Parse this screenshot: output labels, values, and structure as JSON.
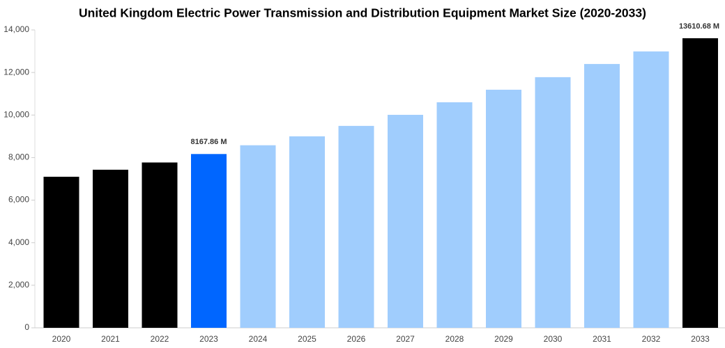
{
  "chart_data": {
    "type": "bar",
    "title": "United Kingdom Electric Power Transmission and Distribution Equipment Market Size (2020-2033)",
    "categories": [
      "2020",
      "2021",
      "2022",
      "2023",
      "2024",
      "2025",
      "2026",
      "2027",
      "2028",
      "2029",
      "2030",
      "2031",
      "2032",
      "2033"
    ],
    "values": [
      7100,
      7430,
      7770,
      8167.86,
      8580,
      9000,
      9490,
      10010,
      10600,
      11190,
      11780,
      12400,
      12990,
      13610.68
    ],
    "value_labels": [
      null,
      null,
      null,
      "8167.86 M",
      null,
      null,
      null,
      null,
      null,
      null,
      null,
      null,
      null,
      "13610.68 M"
    ],
    "colors": [
      "#000000",
      "#000000",
      "#000000",
      "#0066ff",
      "#a0cdfd",
      "#a0cdfd",
      "#a0cdfd",
      "#a0cdfd",
      "#a0cdfd",
      "#a0cdfd",
      "#a0cdfd",
      "#a0cdfd",
      "#a0cdfd",
      "#000000"
    ],
    "ylim": [
      0,
      14000
    ],
    "yticks": [
      0,
      {
        "value": 2000,
        "label": "2,000"
      },
      {
        "value": 4000,
        "label": "4,000"
      },
      {
        "value": 6000,
        "label": "6,000"
      },
      {
        "value": 8000,
        "label": "8,000"
      },
      {
        "value": 10000,
        "label": "10,000"
      },
      {
        "value": 12000,
        "label": "12,000"
      },
      {
        "value": 14000,
        "label": "14,000"
      }
    ],
    "grid": false
  }
}
